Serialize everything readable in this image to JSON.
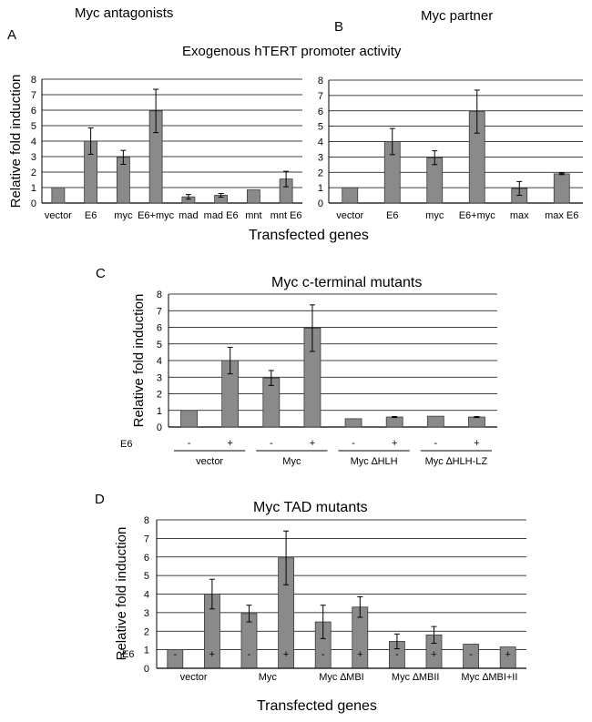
{
  "figure": {
    "heading_a": "Myc antagonists",
    "heading_b": "Myc partner",
    "shared_title": "Exogenous hTERT promoter activity",
    "shared_xlabel_ab": "Transfected genes",
    "shared_xlabel_d": "Transfected genes"
  },
  "colors": {
    "bar": "#8a8a8a",
    "bar_edge": "#3a3a3a",
    "grid": "#000000"
  },
  "chart_data": [
    {
      "panel": "A",
      "type": "bar",
      "title": "",
      "xlabel": "Transfected genes",
      "ylabel": "Relative fold induction",
      "ylim": [
        0,
        8
      ],
      "grid": true,
      "categories": [
        "vector",
        "E6",
        "myc",
        "E6+myc",
        "mad",
        "mad E6",
        "mnt",
        "mnt E6"
      ],
      "values": [
        1.0,
        4.0,
        2.95,
        5.95,
        0.4,
        0.5,
        0.85,
        1.55
      ],
      "errors": [
        0,
        0.85,
        0.45,
        1.4,
        0.15,
        0.12,
        0,
        0.5
      ]
    },
    {
      "panel": "B",
      "type": "bar",
      "title": "",
      "xlabel": "Transfected genes",
      "ylabel": "",
      "ylim": [
        0,
        8
      ],
      "grid": true,
      "categories": [
        "vector",
        "E6",
        "myc",
        "E6+myc",
        "max",
        "max E6"
      ],
      "values": [
        1.0,
        4.0,
        2.95,
        5.95,
        0.95,
        1.9
      ],
      "errors": [
        0,
        0.85,
        0.45,
        1.4,
        0.45,
        0.05
      ]
    },
    {
      "panel": "C",
      "type": "bar",
      "title": "Myc c-terminal mutants",
      "xlabel": "",
      "ylabel": "Relative fold induction",
      "ylim": [
        0,
        8
      ],
      "grid": true,
      "row_label": "E6",
      "categories": [
        "-",
        "+",
        "-",
        "+",
        "-",
        "+",
        "-",
        "+"
      ],
      "groups": [
        "vector",
        "Myc",
        "Myc ∆HLH",
        "Myc ∆HLH-LZ"
      ],
      "values": [
        1.0,
        4.0,
        2.95,
        5.95,
        0.5,
        0.6,
        0.65,
        0.6
      ],
      "errors": [
        0,
        0.8,
        0.45,
        1.4,
        0,
        0.03,
        0,
        0.03
      ]
    },
    {
      "panel": "D",
      "type": "bar",
      "title": "Myc TAD mutants",
      "xlabel": "Transfected genes",
      "ylabel": "Relative fold induction",
      "ylim": [
        0,
        8
      ],
      "grid": true,
      "row_label": "E6",
      "categories": [
        "-",
        "+",
        "-",
        "+",
        "-",
        "+",
        "-",
        "+",
        "-",
        "+"
      ],
      "groups": [
        "vector",
        "Myc",
        "Myc ∆MBI",
        "Myc ∆MBII",
        "Myc ∆MBI+II"
      ],
      "values": [
        1.0,
        4.0,
        2.95,
        5.95,
        2.5,
        3.3,
        1.45,
        1.8,
        1.3,
        1.15
      ],
      "errors": [
        0,
        0.8,
        0.45,
        1.45,
        0.9,
        0.55,
        0.4,
        0.45,
        0,
        0
      ]
    }
  ]
}
